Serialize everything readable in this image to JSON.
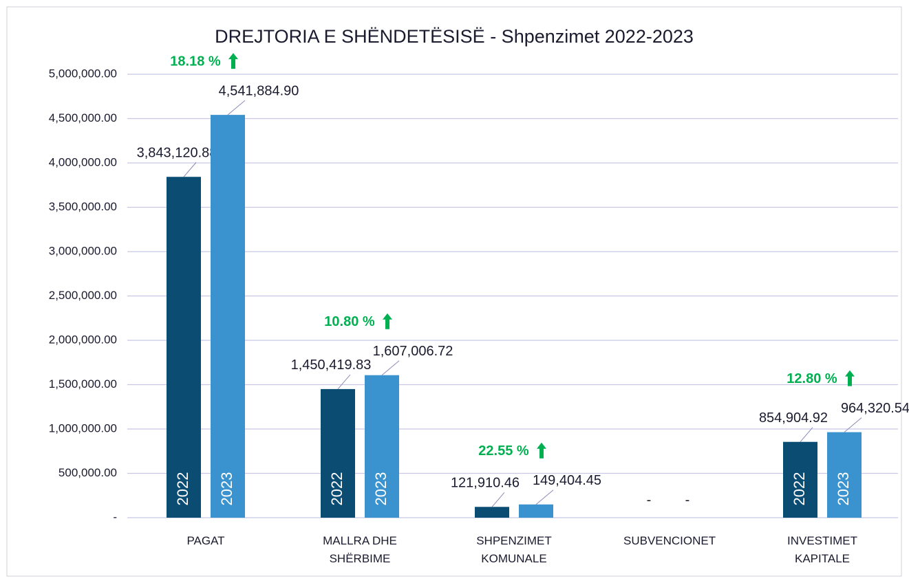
{
  "chart_data": {
    "type": "bar",
    "title": "DREJTORIA E SHËNDETËSISË - Shpenzimet 2022-2023",
    "categories": [
      "PAGAT",
      "MALLRA DHE SHËRBIME",
      "SHPENZIMET KOMUNALE",
      "SUBVENCIONET",
      "INVESTIMET KAPITALE"
    ],
    "series": [
      {
        "name": "2022",
        "color": "#0b4d72",
        "values": [
          3843120.88,
          1450419.83,
          121910.46,
          0,
          854904.92
        ],
        "value_labels": [
          "3,843,120.88",
          "1,450,419.83",
          "121,910.46",
          "-",
          "854,904.92"
        ]
      },
      {
        "name": "2023",
        "color": "#3a93cf",
        "values": [
          4541884.9,
          1607006.72,
          149404.45,
          0,
          964320.54
        ],
        "value_labels": [
          "4,541,884.90",
          "1,607,006.72",
          "149,404.45",
          "-",
          "964,320.54"
        ]
      }
    ],
    "annotations": [
      "18.18 %",
      "10.80 %",
      "22.55 %",
      null,
      "12.80 %"
    ],
    "annotation_color": "#00b050",
    "ylim": [
      0,
      5000000
    ],
    "yticks": [
      {
        "value": 0,
        "label": "-"
      },
      {
        "value": 500000,
        "label": "500,000.00"
      },
      {
        "value": 1000000,
        "label": "1,000,000.00"
      },
      {
        "value": 1500000,
        "label": "1,500,000.00"
      },
      {
        "value": 2000000,
        "label": "2,000,000.00"
      },
      {
        "value": 2500000,
        "label": "2,500,000.00"
      },
      {
        "value": 3000000,
        "label": "3,000,000.00"
      },
      {
        "value": 3500000,
        "label": "3,500,000.00"
      },
      {
        "value": 4000000,
        "label": "4,000,000.00"
      },
      {
        "value": 4500000,
        "label": "4,500,000.00"
      },
      {
        "value": 5000000,
        "label": "5,000,000.00"
      }
    ],
    "grid": true
  }
}
